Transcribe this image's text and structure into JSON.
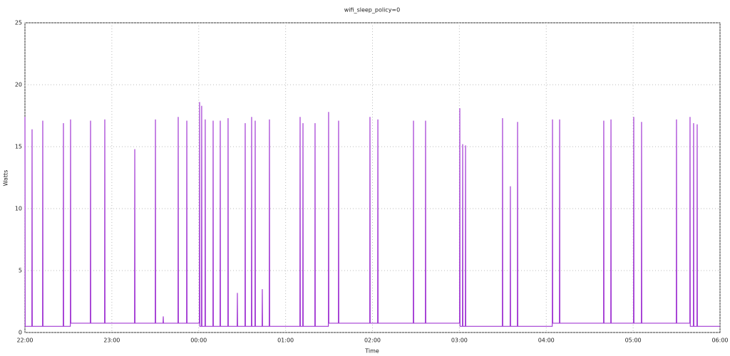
{
  "chart_data": {
    "type": "line",
    "title": "wifi_sleep_policy=0",
    "x_label": "Time",
    "y_label": "Watts",
    "color": "#a33bd4",
    "grid": true,
    "xlim": [
      22,
      30
    ],
    "ylim": [
      0,
      25
    ],
    "xticks": [
      {
        "value": 22,
        "label": "22:00"
      },
      {
        "value": 23,
        "label": "23:00"
      },
      {
        "value": 24,
        "label": "00:00"
      },
      {
        "value": 25,
        "label": "01:00"
      },
      {
        "value": 26,
        "label": "02:00"
      },
      {
        "value": 27,
        "label": "03:00"
      },
      {
        "value": 28,
        "label": "04:00"
      },
      {
        "value": 29,
        "label": "05:00"
      },
      {
        "value": 30,
        "label": "06:00"
      }
    ],
    "yticks": [
      0,
      5,
      10,
      15,
      20,
      25
    ],
    "x": [
      22.0,
      22.003,
      22.079,
      22.082,
      22.085,
      22.202,
      22.205,
      22.208,
      22.44,
      22.443,
      22.446,
      22.522,
      22.525,
      22.528,
      22.752,
      22.755,
      22.758,
      22.916,
      22.919,
      22.922,
      23.261,
      23.264,
      23.267,
      23.499,
      23.502,
      23.505,
      23.589,
      23.592,
      23.595,
      23.761,
      23.764,
      23.767,
      23.86,
      23.863,
      23.866,
      24.007,
      24.01,
      24.013,
      24.031,
      24.034,
      24.037,
      24.072,
      24.075,
      24.078,
      24.163,
      24.166,
      24.169,
      24.245,
      24.248,
      24.251,
      24.335,
      24.338,
      24.341,
      24.442,
      24.445,
      24.448,
      24.532,
      24.535,
      24.538,
      24.606,
      24.609,
      24.612,
      24.647,
      24.65,
      24.653,
      24.729,
      24.732,
      24.735,
      24.811,
      24.814,
      24.817,
      25.164,
      25.167,
      25.17,
      25.197,
      25.2,
      25.203,
      25.336,
      25.339,
      25.342,
      25.492,
      25.495,
      25.498,
      25.607,
      25.61,
      25.613,
      25.968,
      25.971,
      25.974,
      26.059,
      26.062,
      26.065,
      26.469,
      26.472,
      26.475,
      26.608,
      26.611,
      26.614,
      27.002,
      27.005,
      27.008,
      27.035,
      27.038,
      27.041,
      27.068,
      27.071,
      27.074,
      27.494,
      27.497,
      27.5,
      27.584,
      27.587,
      27.59,
      27.667,
      27.67,
      27.673,
      28.069,
      28.072,
      28.075,
      28.151,
      28.154,
      28.157,
      28.659,
      28.662,
      28.665,
      28.742,
      28.745,
      28.748,
      29.004,
      29.007,
      29.01,
      29.094,
      29.097,
      29.1,
      29.496,
      29.499,
      29.502,
      29.652,
      29.655,
      29.658,
      29.693,
      29.696,
      29.699,
      29.734,
      29.737,
      29.74,
      30.0
    ],
    "values": [
      17.4,
      0.5,
      0.5,
      16.4,
      0.5,
      0.5,
      17.1,
      0.5,
      0.5,
      16.9,
      0.5,
      0.5,
      17.2,
      0.75,
      0.75,
      17.1,
      0.75,
      0.75,
      17.2,
      0.75,
      0.75,
      14.8,
      0.75,
      0.75,
      17.2,
      0.75,
      0.75,
      1.3,
      0.75,
      0.75,
      17.4,
      0.75,
      0.75,
      17.1,
      0.75,
      0.75,
      18.6,
      0.5,
      0.5,
      18.3,
      0.5,
      0.5,
      17.2,
      0.5,
      0.5,
      17.1,
      0.5,
      0.5,
      17.1,
      0.5,
      0.5,
      17.3,
      0.5,
      0.5,
      3.2,
      0.5,
      0.5,
      16.9,
      0.5,
      0.5,
      17.4,
      0.5,
      0.5,
      17.1,
      0.5,
      0.5,
      3.5,
      0.5,
      0.5,
      17.2,
      0.5,
      0.5,
      17.4,
      0.5,
      0.5,
      16.9,
      0.5,
      0.5,
      16.9,
      0.5,
      0.5,
      17.8,
      0.75,
      0.75,
      17.1,
      0.75,
      0.75,
      17.4,
      0.75,
      0.75,
      17.2,
      0.75,
      0.75,
      17.1,
      0.75,
      0.75,
      17.1,
      0.75,
      0.75,
      18.1,
      0.5,
      0.5,
      15.2,
      0.5,
      0.5,
      15.1,
      0.5,
      0.5,
      17.3,
      0.5,
      0.5,
      11.8,
      0.5,
      0.5,
      17.0,
      0.5,
      0.5,
      17.2,
      0.75,
      0.75,
      17.2,
      0.75,
      0.75,
      17.1,
      0.75,
      0.75,
      17.2,
      0.75,
      0.75,
      17.4,
      0.75,
      0.75,
      17.0,
      0.75,
      0.75,
      17.2,
      0.75,
      0.75,
      17.4,
      0.5,
      0.5,
      16.9,
      0.5,
      0.5,
      16.8,
      0.5,
      0.5
    ]
  }
}
